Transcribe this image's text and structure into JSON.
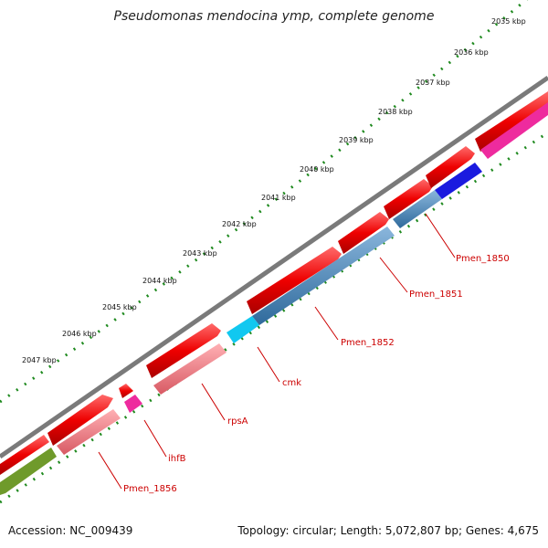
{
  "title": "Pseudomonas mendocina ymp, complete genome",
  "footer": {
    "accession": "Accession: NC_009439",
    "topology": "Topology: circular; Length: 5,072,807 bp; Genes: 4,675"
  },
  "kbp_ticks": [
    "2035 kbp",
    "2036 kbp",
    "2037 kbp",
    "2038 kbp",
    "2039 kbp",
    "2040 kbp",
    "2041 kbp",
    "2042 kbp",
    "2043 kbp",
    "2044 kbp",
    "2045 kbp",
    "2046 kbp",
    "2047 kbp"
  ],
  "genes": [
    "Pmen_1850",
    "Pmen_1851",
    "Pmen_1852",
    "cmk",
    "rpsA",
    "ihfB",
    "Pmen_1856"
  ],
  "colors": {
    "backbone": "#7a7a7a",
    "cds": "#ee0000",
    "scale": "#1f8a1f",
    "label": "#cc0000",
    "rrna_pink": "#ee6f7a",
    "steel_blue": "#4a86b8",
    "cyan": "#11c8f0",
    "blue": "#1a1adf",
    "magenta": "#ee2b9e",
    "olive": "#6f9a2b"
  }
}
